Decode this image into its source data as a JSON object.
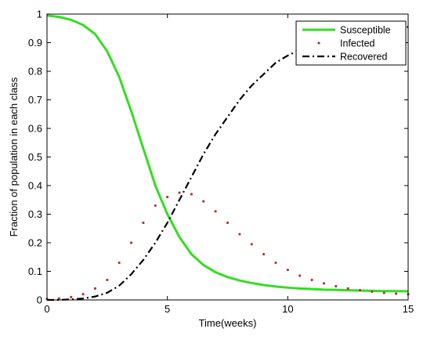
{
  "chart_data": {
    "type": "line",
    "title": "",
    "xlabel": "Time(weeks)",
    "ylabel": "Fraction of population in each class",
    "xlim": [
      0,
      15
    ],
    "ylim": [
      0,
      1
    ],
    "x_ticks": [
      0,
      5,
      10,
      15
    ],
    "y_ticks": [
      0,
      0.1,
      0.2,
      0.3,
      0.4,
      0.5,
      0.6,
      0.7,
      0.8,
      0.9,
      1
    ],
    "x_tick_labels": [
      "0",
      "5",
      "10",
      "15"
    ],
    "y_tick_labels": [
      "0",
      "0.1",
      "0.2",
      "0.3",
      "0.4",
      "0.5",
      "0.6",
      "0.7",
      "0.8",
      "0.9",
      "1"
    ],
    "grid": false,
    "legend_position": "top-right",
    "series": [
      {
        "name": "Susceptible",
        "color": "#33dd22",
        "style": "solid",
        "x": [
          0,
          0.5,
          1,
          1.5,
          2,
          2.5,
          3,
          3.5,
          4,
          4.5,
          5,
          5.5,
          6,
          6.5,
          7,
          7.5,
          8,
          8.5,
          9,
          9.5,
          10,
          10.5,
          11,
          11.5,
          12,
          12.5,
          13,
          13.5,
          14,
          14.5,
          15
        ],
        "y": [
          0.995,
          0.99,
          0.98,
          0.962,
          0.93,
          0.87,
          0.78,
          0.66,
          0.53,
          0.4,
          0.3,
          0.22,
          0.16,
          0.122,
          0.097,
          0.08,
          0.068,
          0.059,
          0.052,
          0.047,
          0.043,
          0.04,
          0.038,
          0.036,
          0.035,
          0.034,
          0.033,
          0.032,
          0.031,
          0.031,
          0.03
        ]
      },
      {
        "name": "Infected",
        "color": "#b83232",
        "style": "dotted",
        "x": [
          0,
          0.5,
          1,
          1.5,
          2,
          2.5,
          3,
          3.5,
          4,
          4.5,
          5,
          5.5,
          6,
          6.5,
          7,
          7.5,
          8,
          8.5,
          9,
          9.5,
          10,
          10.5,
          11,
          11.5,
          12,
          12.5,
          13,
          13.5,
          14,
          14.5,
          15
        ],
        "y": [
          0.003,
          0.005,
          0.01,
          0.02,
          0.04,
          0.07,
          0.13,
          0.2,
          0.27,
          0.33,
          0.36,
          0.375,
          0.37,
          0.345,
          0.31,
          0.27,
          0.23,
          0.195,
          0.16,
          0.13,
          0.105,
          0.085,
          0.07,
          0.058,
          0.048,
          0.04,
          0.034,
          0.029,
          0.025,
          0.022,
          0.02
        ]
      },
      {
        "name": "Recovered",
        "color": "#000000",
        "style": "dashdot",
        "x": [
          0,
          0.5,
          1,
          1.5,
          2,
          2.5,
          3,
          3.5,
          4,
          4.5,
          5,
          5.5,
          6,
          6.5,
          7,
          7.5,
          8,
          8.5,
          9,
          9.5,
          10,
          10.5,
          11,
          11.5,
          12,
          12.5,
          13,
          13.5,
          14,
          14.5,
          15
        ],
        "y": [
          0,
          0,
          0.002,
          0.005,
          0.012,
          0.025,
          0.05,
          0.09,
          0.14,
          0.2,
          0.27,
          0.35,
          0.43,
          0.51,
          0.58,
          0.64,
          0.7,
          0.75,
          0.79,
          0.83,
          0.855,
          0.875,
          0.89,
          0.905,
          0.915,
          0.925,
          0.935,
          0.94,
          0.945,
          0.95,
          0.955
        ]
      }
    ]
  }
}
